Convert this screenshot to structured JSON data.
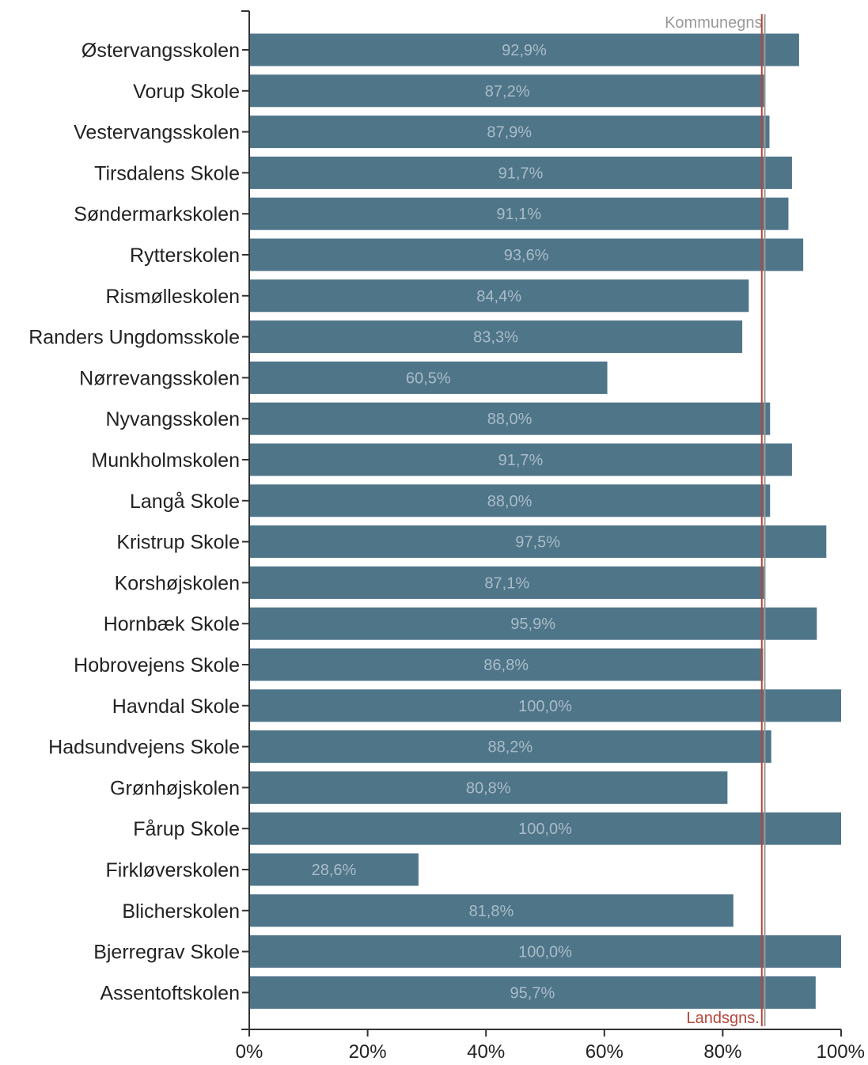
{
  "chart_data": {
    "type": "bar",
    "orientation": "horizontal",
    "categories": [
      "Østervangsskolen",
      "Vorup Skole",
      "Vestervangsskolen",
      "Tirsdalens Skole",
      "Søndermarkskolen",
      "Rytterskolen",
      "Rismølleskolen",
      "Randers Ungdomsskole",
      "Nørrevangsskolen",
      "Nyvangsskolen",
      "Munkholmskolen",
      "Langå Skole",
      "Kristrup Skole",
      "Korshøjskolen",
      "Hornbæk Skole",
      "Hobrovejens Skole",
      "Havndal Skole",
      "Hadsundvejens Skole",
      "Grønhøjskolen",
      "Fårup Skole",
      "Firkløverskolen",
      "Blicherskolen",
      "Bjerregrav Skole",
      "Assentoftskolen"
    ],
    "values": [
      92.9,
      87.2,
      87.9,
      91.7,
      91.1,
      93.6,
      84.4,
      83.3,
      60.5,
      88.0,
      91.7,
      88.0,
      97.5,
      87.1,
      95.9,
      86.8,
      100.0,
      88.2,
      80.8,
      100.0,
      28.6,
      81.8,
      100.0,
      95.7
    ],
    "value_labels": [
      "92,9%",
      "87,2%",
      "87,9%",
      "91,7%",
      "91,1%",
      "93,6%",
      "84,4%",
      "83,3%",
      "60,5%",
      "88,0%",
      "91,7%",
      "88,0%",
      "97,5%",
      "87,1%",
      "95,9%",
      "86,8%",
      "100,0%",
      "88,2%",
      "80,8%",
      "100,0%",
      "28,6%",
      "81,8%",
      "100,0%",
      "95,7%"
    ],
    "xlim": [
      0,
      100
    ],
    "xticks": [
      0,
      20,
      40,
      60,
      80,
      100
    ],
    "xtick_labels": [
      "0%",
      "20%",
      "40%",
      "60%",
      "80%",
      "100%"
    ],
    "reference_lines": [
      {
        "label": "Kommunegns",
        "value": 87.1,
        "color": "#999999",
        "label_position": "top"
      },
      {
        "label": "Landsgns.",
        "value": 86.6,
        "color": "#b5473a",
        "label_position": "bottom"
      }
    ],
    "bar_color": "#4f7589",
    "grid": false,
    "title": "",
    "xlabel": "",
    "ylabel": ""
  }
}
